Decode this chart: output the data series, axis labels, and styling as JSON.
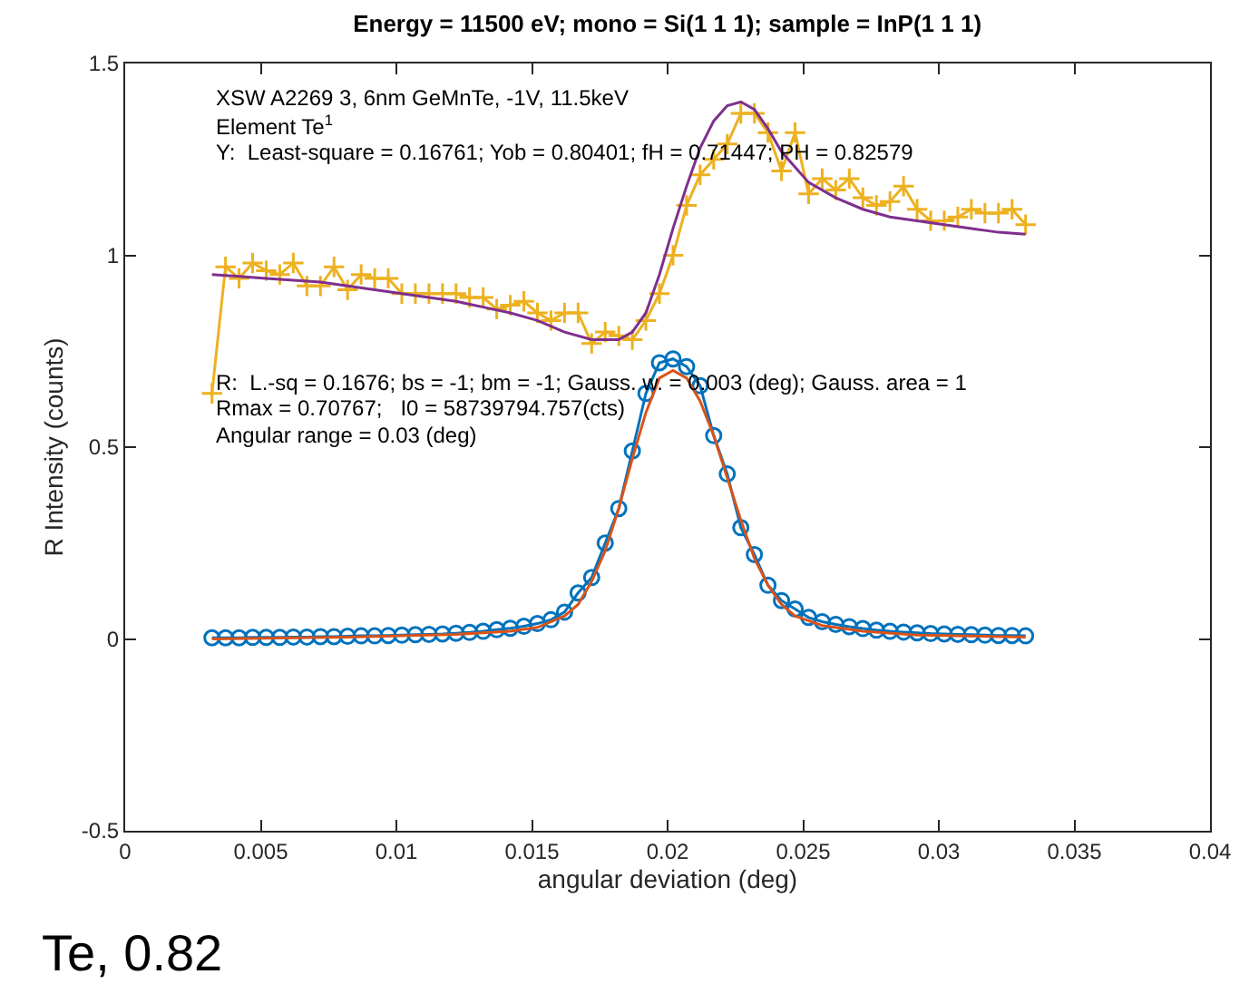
{
  "chart_data": {
    "type": "line",
    "title": "Energy = 11500 eV; mono = Si(1 1 1); sample = InP(1 1 1)",
    "xlabel": "angular deviation (deg)",
    "ylabel": "R Intensity (counts)",
    "x": [
      0.0032,
      0.0037,
      0.0042,
      0.0047,
      0.0052,
      0.0057,
      0.0062,
      0.0067,
      0.0072,
      0.0077,
      0.0082,
      0.0087,
      0.0092,
      0.0097,
      0.0102,
      0.0107,
      0.0112,
      0.0117,
      0.0122,
      0.0127,
      0.0132,
      0.0137,
      0.0142,
      0.0147,
      0.0152,
      0.0157,
      0.0162,
      0.0167,
      0.0172,
      0.0177,
      0.0182,
      0.0187,
      0.0192,
      0.0197,
      0.0202,
      0.0207,
      0.0212,
      0.0217,
      0.0222,
      0.0227,
      0.0232,
      0.0237,
      0.0242,
      0.0247,
      0.0252,
      0.0257,
      0.0262,
      0.0267,
      0.0272,
      0.0277,
      0.0282,
      0.0287,
      0.0292,
      0.0297,
      0.0302,
      0.0307,
      0.0312,
      0.0317,
      0.0322,
      0.0327,
      0.0332
    ],
    "series": [
      {
        "color": "#edb120",
        "marker": "cross",
        "values": [
          0.64,
          0.97,
          0.94,
          0.98,
          0.96,
          0.95,
          0.98,
          0.92,
          0.92,
          0.97,
          0.91,
          0.95,
          0.94,
          0.94,
          0.9,
          0.9,
          0.9,
          0.9,
          0.9,
          0.89,
          0.89,
          0.86,
          0.87,
          0.88,
          0.85,
          0.83,
          0.85,
          0.85,
          0.77,
          0.8,
          0.79,
          0.78,
          0.83,
          0.9,
          1.0,
          1.13,
          1.21,
          1.25,
          1.29,
          1.37,
          1.37,
          1.32,
          1.22,
          1.32,
          1.16,
          1.2,
          1.17,
          1.2,
          1.15,
          1.13,
          1.14,
          1.18,
          1.12,
          1.09,
          1.09,
          1.1,
          1.12,
          1.11,
          1.11,
          1.12,
          1.08
        ]
      },
      {
        "color": "#7e2f8e",
        "marker": "none",
        "x": [
          0.0032,
          0.0042,
          0.0052,
          0.0062,
          0.0072,
          0.0082,
          0.0092,
          0.0102,
          0.0112,
          0.0122,
          0.0132,
          0.0142,
          0.0152,
          0.0162,
          0.0172,
          0.0182,
          0.0187,
          0.0192,
          0.0197,
          0.0202,
          0.0207,
          0.0212,
          0.0217,
          0.0222,
          0.0227,
          0.0232,
          0.0237,
          0.0242,
          0.0252,
          0.0262,
          0.0272,
          0.0282,
          0.0292,
          0.0302,
          0.0312,
          0.0322,
          0.0332
        ],
        "values": [
          0.95,
          0.945,
          0.94,
          0.935,
          0.93,
          0.92,
          0.91,
          0.9,
          0.89,
          0.88,
          0.865,
          0.85,
          0.83,
          0.8,
          0.78,
          0.78,
          0.8,
          0.85,
          0.95,
          1.07,
          1.18,
          1.28,
          1.35,
          1.39,
          1.4,
          1.38,
          1.33,
          1.27,
          1.19,
          1.15,
          1.12,
          1.1,
          1.09,
          1.08,
          1.07,
          1.06,
          1.055
        ]
      },
      {
        "color": "#0072bd",
        "marker": "circle",
        "values": [
          0.003,
          0.003,
          0.003,
          0.004,
          0.004,
          0.004,
          0.005,
          0.005,
          0.006,
          0.006,
          0.007,
          0.008,
          0.008,
          0.009,
          0.01,
          0.011,
          0.012,
          0.013,
          0.015,
          0.017,
          0.02,
          0.024,
          0.028,
          0.033,
          0.04,
          0.05,
          0.07,
          0.12,
          0.16,
          0.25,
          0.34,
          0.49,
          0.64,
          0.72,
          0.73,
          0.71,
          0.66,
          0.53,
          0.43,
          0.29,
          0.22,
          0.14,
          0.1,
          0.078,
          0.056,
          0.045,
          0.038,
          0.032,
          0.027,
          0.023,
          0.02,
          0.018,
          0.016,
          0.014,
          0.013,
          0.012,
          0.011,
          0.01,
          0.009,
          0.009,
          0.008
        ]
      },
      {
        "color": "#d95319",
        "marker": "none",
        "x": [
          0.0032,
          0.0082,
          0.0122,
          0.0142,
          0.0152,
          0.0162,
          0.0167,
          0.0172,
          0.0177,
          0.0182,
          0.0187,
          0.0192,
          0.0197,
          0.0202,
          0.0207,
          0.0212,
          0.0217,
          0.0222,
          0.0227,
          0.0232,
          0.0237,
          0.0242,
          0.0247,
          0.0257,
          0.0272,
          0.0292,
          0.0332
        ],
        "values": [
          0.0,
          0.005,
          0.012,
          0.02,
          0.03,
          0.06,
          0.09,
          0.15,
          0.23,
          0.34,
          0.47,
          0.59,
          0.68,
          0.7,
          0.68,
          0.62,
          0.53,
          0.42,
          0.31,
          0.21,
          0.14,
          0.09,
          0.06,
          0.035,
          0.02,
          0.01,
          0.005
        ]
      }
    ],
    "xlim": [
      0,
      0.04
    ],
    "xticks": [
      0,
      0.005,
      0.01,
      0.015,
      0.02,
      0.025,
      0.03,
      0.035,
      0.04
    ],
    "ylim": [
      -0.5,
      1.5
    ],
    "yticks": [
      -0.5,
      0,
      0.5,
      1,
      1.5
    ],
    "annotations": [
      "XSW A2269 3, 6nm GeMnTe, -1V, 11.5keV",
      "Element Te$^{1}$",
      "Y:  Least-square = 0.16761; Yob = 0.80401; fH = 0.71447; PH = 0.82579",
      "R:  L.-sq = 0.1676; bs = -1; bm = -1; Gauss. w. = 0.003 (deg); Gauss. area = 1",
      "Rmax = 0.70767;   I0 = 58739794.757(cts)",
      "Angular range = 0.03 (deg)",
      "Te, 0.82"
    ]
  }
}
